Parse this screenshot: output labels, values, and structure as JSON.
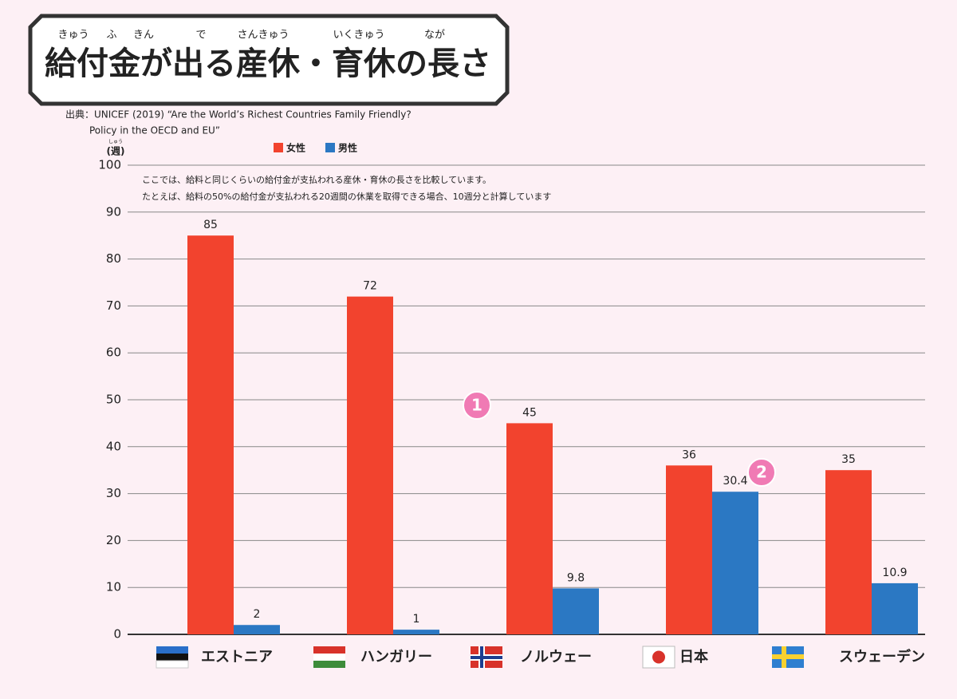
{
  "chart_data": {
    "type": "bar",
    "title": "給付金が出る産休・育休の長さ",
    "title_ruby": [
      "きゅう",
      "ふ",
      "きん",
      "で",
      "さんきゅう",
      "いくきゅう",
      "なが"
    ],
    "source": "出典：UNICEF (2019) “Are the World’s Richest Countries Family Friendly?",
    "source_line2": "Policy in the OECD and EU”",
    "notes": [
      "ここでは、給料と同じくらいの給付金が支払われる産休・育休の長さを比較しています。",
      "たとえば、給料の50%の給付金が支払われる20週間の休業を取得できる場合、10週分と計算しています"
    ],
    "y_label": "(週)",
    "y_label_ruby": "しゅう",
    "categories": [
      "エストニア",
      "ハンガリー",
      "ノルウェー",
      "日本",
      "スウェーデン"
    ],
    "series": [
      {
        "name": "女性",
        "color": "#f2432e",
        "values": [
          85,
          72,
          45,
          36,
          35
        ]
      },
      {
        "name": "男性",
        "color": "#2b78c3",
        "values": [
          2,
          1,
          9.8,
          30.4,
          10.9
        ]
      }
    ],
    "annotations": [
      "1",
      "2"
    ],
    "ylim": [
      0,
      100
    ],
    "yticks": [
      0,
      10,
      20,
      30,
      40,
      50,
      60,
      70,
      80,
      90,
      100
    ],
    "grid": true
  }
}
